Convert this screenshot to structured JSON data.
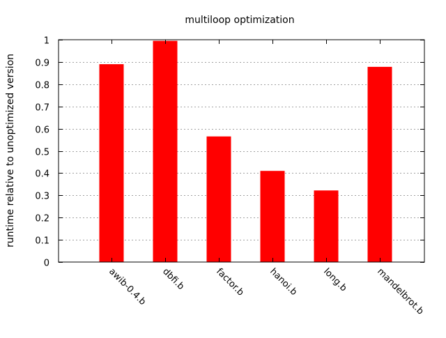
{
  "chart_data": {
    "type": "bar",
    "title": "multiloop optimization",
    "xlabel": "",
    "ylabel": "runtime relative to unoptimized version",
    "categories": [
      "awib-0.4.b",
      "dbfi.b",
      "factor.b",
      "hanoi.b",
      "long.b",
      "mandelbrot.b"
    ],
    "values": [
      0.89,
      0.995,
      0.565,
      0.41,
      0.322,
      0.878
    ],
    "ylim": [
      0,
      1
    ],
    "yticks": [
      "0",
      "0.1",
      "0.2",
      "0.3",
      "0.4",
      "0.5",
      "0.6",
      "0.7",
      "0.8",
      "0.9",
      "1"
    ],
    "grid": true,
    "legend": "none",
    "bar_color": "#ff0000",
    "grid_color": "#a0a0a0"
  }
}
